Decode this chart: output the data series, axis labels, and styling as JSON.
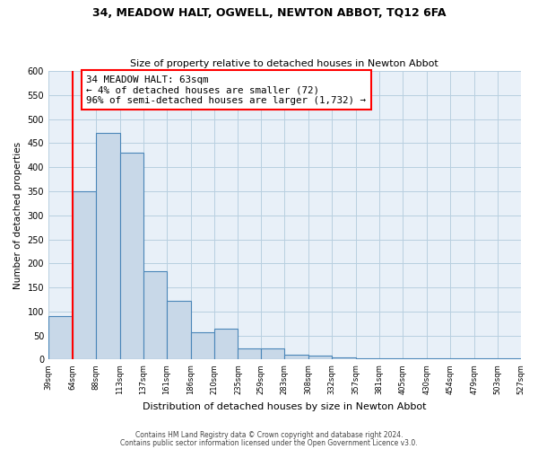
{
  "title": "34, MEADOW HALT, OGWELL, NEWTON ABBOT, TQ12 6FA",
  "subtitle": "Size of property relative to detached houses in Newton Abbot",
  "xlabel": "Distribution of detached houses by size in Newton Abbot",
  "ylabel": "Number of detached properties",
  "bar_left_edges": [
    39,
    64,
    88,
    113,
    137,
    161,
    186,
    210,
    235,
    259,
    283,
    308,
    332,
    357,
    381,
    405,
    430,
    454,
    479,
    503
  ],
  "bar_widths": [
    25,
    24,
    25,
    24,
    24,
    25,
    24,
    25,
    24,
    24,
    25,
    24,
    25,
    24,
    24,
    25,
    24,
    25,
    24,
    24
  ],
  "bar_heights": [
    90,
    350,
    472,
    430,
    183,
    122,
    56,
    65,
    24,
    24,
    11,
    9,
    5,
    2,
    2,
    2,
    2,
    2,
    2,
    2
  ],
  "bar_color": "#c8d8e8",
  "bar_edge_color": "#4a86b8",
  "xlim_left": 39,
  "xlim_right": 527,
  "ylim_top": 600,
  "ylim_bottom": 0,
  "yticks": [
    0,
    50,
    100,
    150,
    200,
    250,
    300,
    350,
    400,
    450,
    500,
    550,
    600
  ],
  "xtick_labels": [
    "39sqm",
    "64sqm",
    "88sqm",
    "113sqm",
    "137sqm",
    "161sqm",
    "186sqm",
    "210sqm",
    "235sqm",
    "259sqm",
    "283sqm",
    "308sqm",
    "332sqm",
    "357sqm",
    "381sqm",
    "405sqm",
    "430sqm",
    "454sqm",
    "479sqm",
    "503sqm",
    "527sqm"
  ],
  "xtick_positions": [
    39,
    64,
    88,
    113,
    137,
    161,
    186,
    210,
    235,
    259,
    283,
    308,
    332,
    357,
    381,
    405,
    430,
    454,
    479,
    503,
    527
  ],
  "property_line_x": 64,
  "annotation_title": "34 MEADOW HALT: 63sqm",
  "annotation_line1": "← 4% of detached houses are smaller (72)",
  "annotation_line2": "96% of semi-detached houses are larger (1,732) →",
  "grid_color": "#b8cfe0",
  "bg_color": "#e8f0f8",
  "footer1": "Contains HM Land Registry data © Crown copyright and database right 2024.",
  "footer2": "Contains public sector information licensed under the Open Government Licence v3.0."
}
